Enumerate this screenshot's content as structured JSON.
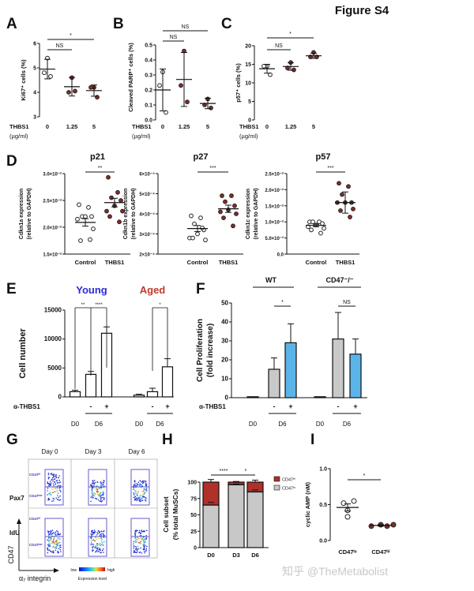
{
  "figure_title": "Figure S4",
  "watermark": "知乎 @TheMetabolist",
  "colors": {
    "control": "#ffffff",
    "treated": "#8b2a26",
    "young": "#2b2bd6",
    "aged": "#c0392b",
    "bar_gray": "#c9c9c9",
    "bar_blue": "#5bb4e8",
    "cd47_hi": "#b0302a",
    "cd47_lo": "#c8c8c8",
    "gate": "#6a5acd"
  },
  "chart_data": [
    {
      "panel": "A",
      "type": "scatter",
      "ylabel": "Ki67⁺ cells (%)",
      "xlabel_lines": [
        "THBS1",
        "(µg/ml)"
      ],
      "categories": [
        "0",
        "1.25",
        "5"
      ],
      "ylim": [
        3,
        6
      ],
      "yticks": [
        3,
        4,
        5,
        6
      ],
      "ytick_labels": [
        "3",
        "4",
        "5",
        "6"
      ],
      "groups": [
        {
          "points": [
            5.4,
            4.8,
            4.65
          ],
          "mean": 4.95,
          "err": 0.4
        },
        {
          "points": [
            4.6,
            4.0,
            4.05
          ],
          "mean": 4.23,
          "err": 0.38
        },
        {
          "points": [
            4.2,
            4.2,
            3.8
          ],
          "mean": 4.07,
          "err": 0.23
        }
      ],
      "comparisons": [
        {
          "from": 0,
          "to": 1,
          "label": "NS"
        },
        {
          "from": 0,
          "to": 2,
          "label": "*"
        }
      ]
    },
    {
      "panel": "B",
      "type": "scatter",
      "ylabel": "Cleaved PARP⁺ cells (%)",
      "xlabel_lines": [
        "THBS1",
        "(µg/ml)"
      ],
      "categories": [
        "0",
        "1.25",
        "5"
      ],
      "ylim": [
        0,
        0.5
      ],
      "yticks": [
        0,
        0.1,
        0.2,
        0.3,
        0.4,
        0.5
      ],
      "ytick_labels": [
        "0.0",
        "0.1",
        "0.2",
        "0.3",
        "0.4",
        "0.5"
      ],
      "groups": [
        {
          "points": [
            0.32,
            0.23,
            0.05
          ],
          "mean": 0.2,
          "err": 0.14
        },
        {
          "points": [
            0.46,
            0.23,
            0.12
          ],
          "mean": 0.27,
          "err": 0.18
        },
        {
          "points": [
            0.14,
            0.1,
            0.08
          ],
          "mean": 0.11,
          "err": 0.035
        }
      ],
      "comparisons": [
        {
          "from": 0,
          "to": 1,
          "label": "NS"
        },
        {
          "from": 0,
          "to": 2,
          "label": "NS"
        }
      ]
    },
    {
      "panel": "C",
      "type": "scatter",
      "ylabel": "p57⁺ cells (%)",
      "xlabel_lines": [
        "THBS1",
        "(µg/ml)"
      ],
      "categories": [
        "0",
        "1.25",
        "5"
      ],
      "ylim": [
        0,
        20
      ],
      "yticks": [
        0,
        5,
        10,
        15,
        20
      ],
      "ytick_labels": [
        "0",
        "5",
        "10",
        "15",
        "20"
      ],
      "groups": [
        {
          "points": [
            14.5,
            14.5,
            12.2
          ],
          "mean": 13.8,
          "err": 1.2
        },
        {
          "points": [
            15.5,
            14.0,
            13.5
          ],
          "mean": 14.4,
          "err": 1.0
        },
        {
          "points": [
            18.2,
            17.0,
            17.0
          ],
          "mean": 17.3,
          "err": 0.7
        }
      ],
      "comparisons": [
        {
          "from": 0,
          "to": 1,
          "label": "NS"
        },
        {
          "from": 0,
          "to": 2,
          "label": "*"
        }
      ]
    },
    {
      "panel": "D",
      "type": "scatter",
      "title": "p21",
      "ylabel_lines": [
        "Cdkn1a expression",
        "(relative to GAPDH)"
      ],
      "categories": [
        "Control",
        "THBS1"
      ],
      "ylim": [
        0.015,
        0.03
      ],
      "yticks": [
        0.015,
        0.02,
        0.025,
        0.03
      ],
      "ytick_labels": [
        "1.5×10⁻²",
        "2.0×10⁻²",
        "2.5×10⁻²",
        "3.0×10⁻²"
      ],
      "groups": [
        {
          "points": [
            0.0242,
            0.0237,
            0.022,
            0.022,
            0.022,
            0.0215,
            0.0197,
            0.0175,
            0.0177
          ],
          "mean": 0.0209,
          "err": 0.0007
        },
        {
          "points": [
            0.0293,
            0.0265,
            0.0255,
            0.025,
            0.024,
            0.023,
            0.023,
            0.022,
            0.021
          ],
          "mean": 0.0246,
          "err": 0.0008
        }
      ],
      "comparisons": [
        {
          "from": 0,
          "to": 1,
          "label": "**"
        }
      ]
    },
    {
      "panel": "D",
      "type": "scatter",
      "title": "p27",
      "ylabel_lines": [
        "Cdkn1b expression",
        "(relative to GAPDH)"
      ],
      "categories": [
        "Control",
        "THBS1"
      ],
      "ylim": [
        0.0002,
        0.0006
      ],
      "yticks": [
        0.0002,
        0.0003,
        0.0004,
        0.0005,
        0.0006
      ],
      "ytick_labels": [
        "2×10⁻⁴",
        "3×10⁻⁴",
        "4×10⁻⁴",
        "5×10⁻⁴",
        "6×10⁻⁴"
      ],
      "groups": [
        {
          "points": [
            0.00039,
            0.00038,
            0.00035,
            0.00032,
            0.0003,
            0.00028,
            0.00027,
            0.00028,
            0.00033
          ],
          "mean": 0.000327,
          "err": 1.5e-05
        },
        {
          "points": [
            0.00049,
            0.00049,
            0.00046,
            0.00044,
            0.00042,
            0.00041,
            0.0004,
            0.00038,
            0.00034
          ],
          "mean": 0.000425,
          "err": 1.8e-05
        }
      ],
      "comparisons": [
        {
          "from": 0,
          "to": 1,
          "label": "***"
        }
      ]
    },
    {
      "panel": "D",
      "type": "scatter",
      "title": "p57",
      "ylabel_lines": [
        "Cdkn1c expression",
        "(relative to GAPDH)"
      ],
      "categories": [
        "Control",
        "THBS1"
      ],
      "ylim": [
        0,
        0.025
      ],
      "yticks": [
        0,
        0.005,
        0.01,
        0.015,
        0.02,
        0.025
      ],
      "ytick_labels": [
        "0.0",
        "5.0×10⁻³",
        "1.0×10⁻²",
        "1.5×10⁻²",
        "2.0×10⁻²",
        "2.5×10⁻²"
      ],
      "groups": [
        {
          "points": [
            0.01,
            0.01,
            0.01,
            0.0095,
            0.009,
            0.0085,
            0.008,
            0.0075,
            0.0065
          ],
          "mean": 0.0089,
          "err": 0.0004
        },
        {
          "points": [
            0.022,
            0.021,
            0.0185,
            0.016,
            0.016,
            0.016,
            0.014,
            0.0135,
            0.0115
          ],
          "mean": 0.016,
          "err": 0.0033
        }
      ],
      "comparisons": [
        {
          "from": 0,
          "to": 1,
          "label": "***"
        }
      ]
    },
    {
      "panel": "E",
      "type": "bar",
      "ylabel": "Cell number",
      "ylim": [
        0,
        15000
      ],
      "yticks": [
        0,
        5000,
        10000,
        15000
      ],
      "ytick_labels": [
        "0",
        "5000",
        "10000",
        "15000"
      ],
      "group_labels": [
        "Young",
        "Aged"
      ],
      "treatment_label": "α-THBS1",
      "bars": [
        {
          "group": 0,
          "day": "D0",
          "treatment": "",
          "value": 900,
          "err": 250
        },
        {
          "group": 0,
          "day": "D6",
          "treatment": "-",
          "value": 3900,
          "err": 500
        },
        {
          "group": 0,
          "day": "D6",
          "treatment": "+",
          "value": 11000,
          "err": 1100
        },
        {
          "group": 1,
          "day": "D0",
          "treatment": "",
          "value": 300,
          "err": 150
        },
        {
          "group": 1,
          "day": "D6",
          "treatment": "-",
          "value": 900,
          "err": 600
        },
        {
          "group": 1,
          "day": "D6",
          "treatment": "+",
          "value": 5200,
          "err": 1400
        }
      ],
      "day_labels": [
        "D0",
        "D6",
        "D0",
        "D6"
      ],
      "comparisons": [
        {
          "from": 0,
          "to": 1,
          "label": "**"
        },
        {
          "from": 1,
          "to": 2,
          "label": "****"
        },
        {
          "from": 4,
          "to": 5,
          "label": "*"
        }
      ]
    },
    {
      "panel": "F",
      "type": "bar",
      "ylabel_lines": [
        "Cell Proliferation",
        "(fold increase)"
      ],
      "ylim": [
        0,
        50
      ],
      "yticks": [
        0,
        10,
        20,
        30,
        40,
        50
      ],
      "ytick_labels": [
        "0",
        "10",
        "20",
        "30",
        "40",
        "50"
      ],
      "group_labels": [
        "WT",
        "CD47⁻/⁻"
      ],
      "treatment_label": "α-THBS1",
      "bars": [
        {
          "group": 0,
          "day": "D0",
          "treatment": "",
          "value": 0.5,
          "err": 0
        },
        {
          "group": 0,
          "day": "D6",
          "treatment": "-",
          "value": 15,
          "err": 6
        },
        {
          "group": 0,
          "day": "D6",
          "treatment": "+",
          "value": 29,
          "err": 10
        },
        {
          "group": 1,
          "day": "D0",
          "treatment": "",
          "value": 0.5,
          "err": 0
        },
        {
          "group": 1,
          "day": "D6",
          "treatment": "-",
          "value": 31,
          "err": 14
        },
        {
          "group": 1,
          "day": "D6",
          "treatment": "+",
          "value": 23,
          "err": 8
        }
      ],
      "day_labels": [
        "D0",
        "D6",
        "D0",
        "D6"
      ],
      "comparisons": [
        {
          "from": 1,
          "to": 2,
          "label": "*"
        },
        {
          "from": 4,
          "to": 5,
          "label": "NS"
        }
      ]
    },
    {
      "panel": "G",
      "type": "heatmap",
      "columns": [
        "Day 0",
        "Day 3",
        "Day 6"
      ],
      "rows": [
        "Pax7",
        "IdU"
      ],
      "gate_labels": [
        "CD47ʰⁱ",
        "CD47ˡᵒʷ"
      ],
      "yaxis_label": "CD47",
      "xaxis_label": "α₇ integrin",
      "colorbar": {
        "low": "low",
        "high": "high",
        "label": "Expression level"
      }
    },
    {
      "panel": "H",
      "type": "bar",
      "stacked": true,
      "ylabel_lines": [
        "Cell subset",
        "(% total MuSCs)"
      ],
      "ylim": [
        0,
        100
      ],
      "yticks": [
        0,
        25,
        50,
        75,
        100
      ],
      "ytick_labels": [
        "0",
        "25",
        "50",
        "75",
        "100"
      ],
      "categories": [
        "D0",
        "D3",
        "D6"
      ],
      "series": [
        {
          "name": "CD47ˡᵒ",
          "values": [
            65,
            96,
            85
          ],
          "err": [
            4,
            1,
            3
          ]
        },
        {
          "name": "CD47ʰⁱ",
          "values": [
            35,
            4,
            15
          ],
          "err": [
            4,
            1,
            3
          ]
        }
      ],
      "legend": [
        "CD47ʰⁱ",
        "CD47ˡᵒ"
      ],
      "legend_position": "right",
      "comparisons": [
        {
          "from": 0,
          "to": 1,
          "label": "****"
        },
        {
          "from": 1,
          "to": 2,
          "label": "*"
        }
      ]
    },
    {
      "panel": "I",
      "type": "scatter",
      "ylabel": "cyclic AMP (nM)",
      "categories": [
        "CD47ˡᵒ",
        "CD47ʰⁱ"
      ],
      "ylim": [
        0,
        1
      ],
      "yticks": [
        0,
        0.5,
        1
      ],
      "ytick_labels": [
        "0.0",
        "0.5",
        "1.0"
      ],
      "groups": [
        {
          "points": [
            0.52,
            0.55,
            0.42,
            0.33
          ],
          "mean": 0.46,
          "err": 0.05
        },
        {
          "points": [
            0.2,
            0.22,
            0.2,
            0.22
          ],
          "mean": 0.21,
          "err": 0.01
        }
      ],
      "comparisons": [
        {
          "from": 0,
          "to": 1,
          "label": "*"
        }
      ]
    }
  ]
}
